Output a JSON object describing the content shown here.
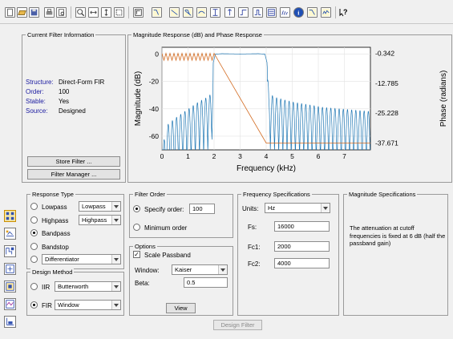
{
  "toolbar": {
    "icons": [
      "new-file-icon",
      "open-file-icon",
      "save-icon",
      "print-icon",
      "print-preview-icon",
      "zoom-in-icon",
      "zoom-x-icon",
      "zoom-fit-icon",
      "full-view-icon",
      "filter-specs-icon",
      "magnitude-response-icon",
      "phase-response-icon",
      "magnitude-phase-icon",
      "group-delay-icon",
      "phase-delay-icon",
      "impulse-response-icon",
      "step-response-icon",
      "pole-zero-icon",
      "filter-coefficients-icon",
      "filter-info-icon",
      "magnitude-response-estimate-icon",
      "round-off-noise-icon",
      "whats-this-icon"
    ]
  },
  "current_filter": {
    "title": "Current Filter Information",
    "rows": [
      {
        "label": "Structure:",
        "value": "Direct-Form FIR"
      },
      {
        "label": "Order:",
        "value": "100"
      },
      {
        "label": "Stable:",
        "value": "Yes"
      },
      {
        "label": "Source:",
        "value": "Designed"
      }
    ],
    "store_label": "Store Filter ...",
    "manager_label": "Filter Manager ..."
  },
  "response_panel": {
    "title": "Magnitude Response (dB) and Phase Response"
  },
  "chart_data": {
    "type": "line",
    "xlabel": "Frequency (kHz)",
    "ylabel_left": "Magnitude (dB)",
    "ylabel_right": "Phase (radians)",
    "xlim": [
      0,
      8
    ],
    "ylim_left": [
      -70,
      5
    ],
    "ylim_right": [
      -40.5,
      2.2
    ],
    "x_ticks": [
      "0",
      "1",
      "2",
      "3",
      "4",
      "5",
      "6",
      "7"
    ],
    "y_ticks_left": [
      "0",
      "-20",
      "-40",
      "-60"
    ],
    "y_ticks_right": [
      "-0.342",
      "-12.785",
      "-25.228",
      "-37.671"
    ],
    "series": [
      {
        "color": "#1f77b4",
        "points": [
          [
            0,
            -70
          ],
          [
            0.2,
            -52
          ],
          [
            0.5,
            -47
          ],
          [
            0.8,
            -43
          ],
          [
            1.1,
            -39
          ],
          [
            1.4,
            -35
          ],
          [
            1.7,
            -32
          ],
          [
            1.9,
            -29
          ],
          [
            1.97,
            -6
          ],
          [
            2.05,
            0
          ],
          [
            2.3,
            0.3
          ],
          [
            3,
            0.1
          ],
          [
            3.7,
            0.3
          ],
          [
            3.95,
            0
          ],
          [
            4.03,
            -6
          ],
          [
            4.1,
            -29
          ],
          [
            4.4,
            -32
          ],
          [
            5,
            -35
          ],
          [
            5.6,
            -37
          ],
          [
            6.2,
            -39
          ],
          [
            6.8,
            -40
          ],
          [
            7.4,
            -41
          ],
          [
            8,
            -42
          ]
        ]
      },
      {
        "color": "#d2691e",
        "points": [
          [
            0,
            -0.342
          ],
          [
            2,
            -0.342
          ],
          [
            4,
            -37.671
          ],
          [
            8,
            -37.671
          ]
        ]
      }
    ]
  },
  "response_type": {
    "title": "Response Type",
    "options": [
      {
        "label": "Lowpass",
        "selected": false,
        "dropdown": "Lowpass"
      },
      {
        "label": "Highpass",
        "selected": false,
        "dropdown": "Highpass"
      },
      {
        "label": "Bandpass",
        "selected": true,
        "dropdown": ""
      },
      {
        "label": "Bandstop",
        "selected": false,
        "dropdown": ""
      },
      {
        "label": "",
        "selected": false,
        "dropdown": "Differentiator"
      }
    ]
  },
  "design_method": {
    "title": "Design Method",
    "iir": {
      "label": "IIR",
      "selected": false,
      "value": "Butterworth"
    },
    "fir": {
      "label": "FIR",
      "selected": true,
      "value": "Window"
    }
  },
  "filter_order": {
    "title": "Filter Order",
    "specify_label": "Specify order:",
    "specify_selected": true,
    "order_value": "100",
    "minimum_label": "Minimum order"
  },
  "options": {
    "title": "Options",
    "scale_label": "Scale Passband",
    "scale_checked": true,
    "window_label": "Window:",
    "window_value": "Kaiser",
    "beta_label": "Beta:",
    "beta_value": "0.5",
    "view_label": "View"
  },
  "freq_specs": {
    "title": "Frequency Specifications",
    "units_label": "Units:",
    "units_value": "Hz",
    "fs_label": "Fs:",
    "fs_value": "16000",
    "fc1_label": "Fc1:",
    "fc1_value": "2000",
    "fc2_label": "Fc2:",
    "fc2_value": "4000"
  },
  "mag_specs": {
    "title": "Magnitude Specifications",
    "text": "The attenuation at cutoff frequencies is fixed at 6 dB (half the passband gain)"
  },
  "design_button": "Design Filter",
  "side_icons": [
    "design-filter-icon",
    "transform-filter-icon",
    "quantize-icon",
    "import-filter-icon",
    "pole-zero-editor-icon",
    "multirate-icon",
    "realize-model-icon"
  ]
}
